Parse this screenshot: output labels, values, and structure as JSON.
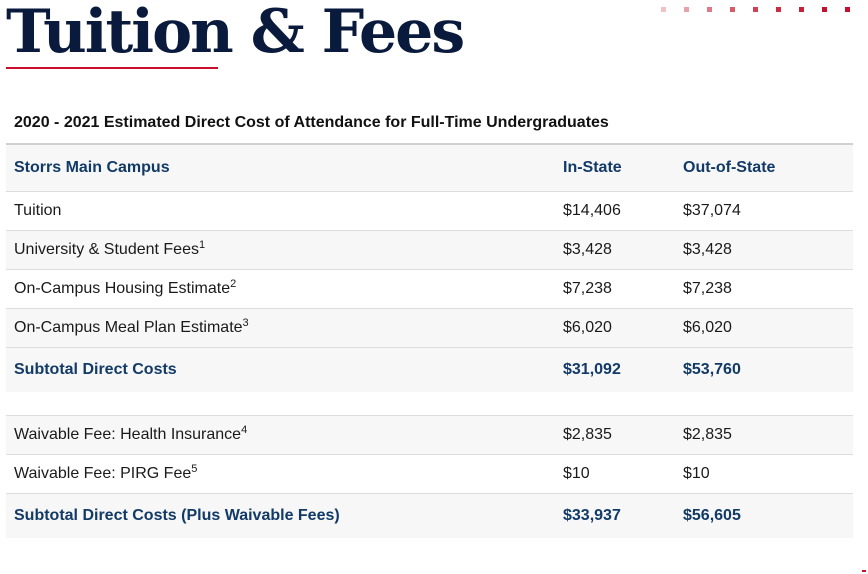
{
  "page": {
    "title": "Tuition & Fees"
  },
  "decoration": {
    "dot_colors": [
      "#f2c1c8",
      "#e7a1ab",
      "#dc7a88",
      "#d55a6b",
      "#d04054",
      "#cc2c43",
      "#ca1f38",
      "#c8102e",
      "#c8102e"
    ]
  },
  "table": {
    "caption": "2020 - 2021 Estimated Direct Cost of Attendance for Full-Time Undergraduates",
    "headers": {
      "campus": "Storrs Main Campus",
      "in_state": "In-State",
      "out_state": "Out-of-State"
    },
    "rows": [
      {
        "label": "Tuition",
        "note": "",
        "in_state": "$14,406",
        "out_state": "$37,074"
      },
      {
        "label": "University & Student Fees",
        "note": "1",
        "in_state": "$3,428",
        "out_state": "$3,428"
      },
      {
        "label": "On-Campus Housing Estimate",
        "note": "2",
        "in_state": "$7,238",
        "out_state": "$7,238"
      },
      {
        "label": "On-Campus Meal Plan Estimate",
        "note": "3",
        "in_state": "$6,020",
        "out_state": "$6,020"
      }
    ],
    "subtotal": {
      "label": "Subtotal Direct Costs",
      "in_state": "$31,092",
      "out_state": "$53,760"
    },
    "waivable_rows": [
      {
        "label": "Waivable Fee: Health Insurance",
        "note": "4",
        "in_state": "$2,835",
        "out_state": "$2,835"
      },
      {
        "label": "Waivable Fee: PIRG Fee",
        "note": "5",
        "in_state": "$10",
        "out_state": "$10"
      }
    ],
    "total": {
      "label": "Subtotal Direct Costs (Plus Waivable Fees)",
      "in_state": "$33,937",
      "out_state": "$56,605"
    }
  }
}
